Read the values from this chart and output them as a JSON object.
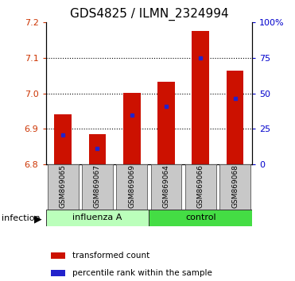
{
  "title": "GDS4825 / ILMN_2324994",
  "categories": [
    "GSM869065",
    "GSM869067",
    "GSM869069",
    "GSM869064",
    "GSM869066",
    "GSM869068"
  ],
  "bar_bottoms": [
    6.8,
    6.8,
    6.8,
    6.8,
    6.8,
    6.8
  ],
  "bar_tops": [
    6.942,
    6.885,
    7.002,
    7.032,
    7.175,
    7.065
  ],
  "blue_markers": [
    6.883,
    6.845,
    6.94,
    6.963,
    7.1,
    6.987
  ],
  "ylim_left": [
    6.8,
    7.2
  ],
  "ylim_right": [
    0,
    100
  ],
  "yticks_left": [
    6.8,
    6.9,
    7.0,
    7.1,
    7.2
  ],
  "yticks_right": [
    0,
    25,
    50,
    75,
    100
  ],
  "ytick_labels_right": [
    "0",
    "25",
    "50",
    "75",
    "100%"
  ],
  "grid_yticks": [
    6.9,
    7.0,
    7.1
  ],
  "bar_color": "#cc1100",
  "blue_color": "#2222cc",
  "influenza_color": "#bbffbb",
  "control_color": "#44dd44",
  "gray_color": "#c8c8c8",
  "tick_fontsize": 8,
  "title_fontsize": 11,
  "bar_width": 0.5
}
